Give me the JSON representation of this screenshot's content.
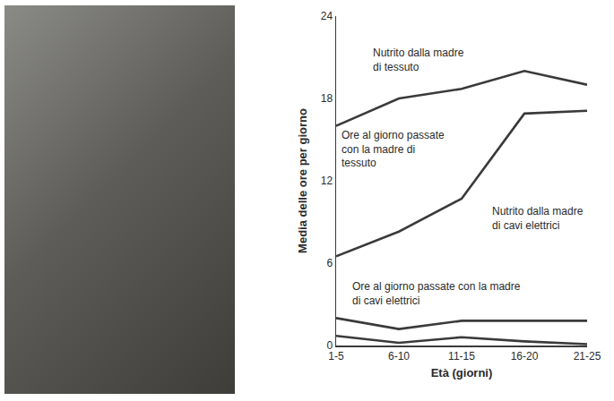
{
  "chart_data": {
    "type": "line",
    "x_label": "Età (giorni)",
    "y_label": "Media delle ore per giorno",
    "categories": [
      "1-5",
      "6-10",
      "11-15",
      "16-20",
      "21-25"
    ],
    "ylim": [
      0,
      24
    ],
    "yticks": [
      0,
      6,
      12,
      18,
      24
    ],
    "grid": false,
    "color": "#3a3a3a",
    "series": [
      {
        "name": "Nutrito dalla madre di tessuto",
        "values": [
          16,
          18,
          18.7,
          20,
          19
        ]
      },
      {
        "name": "Nutrito dalla madre di cavi elettrici",
        "values": [
          6.5,
          8.3,
          10.7,
          16.9,
          17.1
        ]
      },
      {
        "values": [
          2,
          1.2,
          1.8,
          1.8,
          1.8
        ]
      },
      {
        "values": [
          0.7,
          0.2,
          0.6,
          0.3,
          0.1
        ]
      }
    ],
    "annotations": [
      "Ore al giorno passate con la madre di tessuto",
      "Ore al giorno passate con la madre di cavi elettrici"
    ]
  }
}
